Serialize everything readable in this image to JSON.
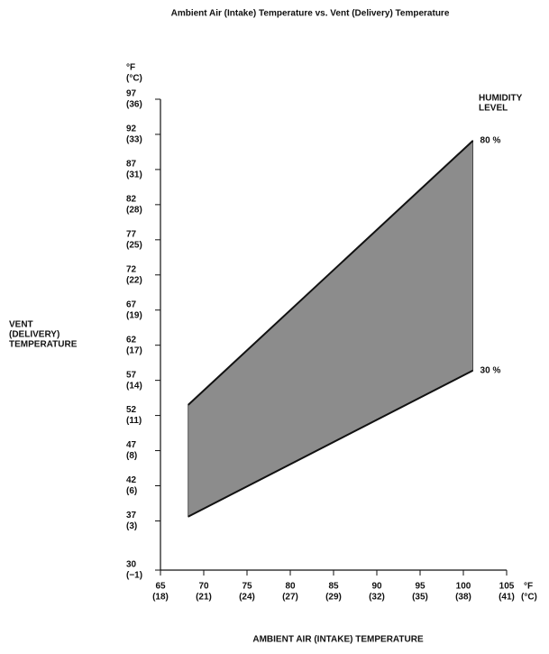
{
  "chart_data": {
    "type": "band",
    "title": "Ambient Air (Intake) Temperature vs. Vent (Delivery) Temperature",
    "xlabel": "AMBIENT AIR (INTAKE) TEMPERATURE",
    "ylabel": [
      "VENT",
      "(DELIVERY)",
      "TEMPERATURE"
    ],
    "x_unit": [
      "°F",
      "(°C)"
    ],
    "y_unit": [
      "°F",
      "(°C)"
    ],
    "legend_title": [
      "HUMIDITY",
      "LEVEL"
    ],
    "xlim": [
      65,
      105
    ],
    "xticks": [
      65,
      70,
      75,
      80,
      85,
      90,
      95,
      100,
      105
    ],
    "xticks_celsius": [
      "(18)",
      "(21)",
      "(24)",
      "(27)",
      "(29)",
      "(32)",
      "(35)",
      "(38)",
      "(41)"
    ],
    "ylim": [
      30,
      97
    ],
    "yticks": [
      30,
      37,
      42,
      47,
      52,
      57,
      62,
      67,
      72,
      77,
      82,
      87,
      92,
      97
    ],
    "yticks_celsius": [
      "(−1)",
      "(3)",
      "(6)",
      "(8)",
      "(11)",
      "(14)",
      "(17)",
      "(19)",
      "(22)",
      "(25)",
      "(28)",
      "(31)",
      "(33)",
      "(36)"
    ],
    "band_color": "#8c8c8c",
    "x": [
      68.2,
      101.1
    ],
    "series": [
      {
        "name": "80 %",
        "color": "#111111",
        "values": [
          53.5,
          91.1
        ]
      },
      {
        "name": "30 %",
        "color": "#111111",
        "values": [
          37.6,
          58.4
        ]
      }
    ]
  }
}
